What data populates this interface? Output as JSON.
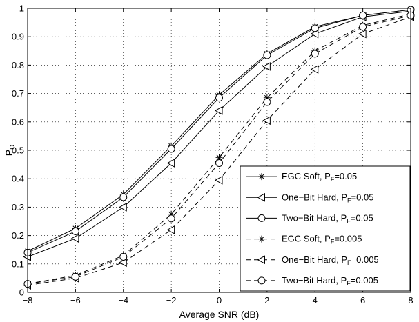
{
  "chart_data": {
    "type": "line",
    "xlabel": "Average SNR (dB)",
    "ylabel_main": "P",
    "ylabel_sub": "D",
    "xlim": [
      -8,
      8
    ],
    "ylim": [
      0,
      1
    ],
    "x_ticks": [
      -8,
      -6,
      -4,
      -2,
      0,
      2,
      4,
      6,
      8
    ],
    "x_tick_labels": [
      "−8",
      "−6",
      "−4",
      "−2",
      "0",
      "2",
      "4",
      "6",
      "8"
    ],
    "y_ticks": [
      0,
      0.1,
      0.2,
      0.3,
      0.4,
      0.5,
      0.6,
      0.7,
      0.8,
      0.9,
      1
    ],
    "y_tick_labels": [
      "0",
      "0.1",
      "0.2",
      "0.3",
      "0.4",
      "0.5",
      "0.6",
      "0.7",
      "0.8",
      "0.9",
      "1"
    ],
    "grid": true,
    "legend_position": "bottom-right",
    "x": [
      -8,
      -6,
      -4,
      -2,
      0,
      2,
      4,
      6,
      8
    ],
    "series": [
      {
        "name": "EGC Soft, P",
        "name_sub": "F",
        "name_suffix": "=0.05",
        "marker": "star",
        "dash": "solid",
        "values": [
          0.145,
          0.225,
          0.345,
          0.515,
          0.695,
          0.84,
          0.935,
          0.975,
          0.995
        ]
      },
      {
        "name": "One−Bit Hard, P",
        "name_sub": "F",
        "name_suffix": "=0.05",
        "marker": "triangle-left",
        "dash": "solid",
        "values": [
          0.125,
          0.19,
          0.3,
          0.455,
          0.64,
          0.795,
          0.91,
          0.97,
          0.99
        ]
      },
      {
        "name": "Two−Bit Hard, P",
        "name_sub": "F",
        "name_suffix": "=0.05",
        "marker": "circle",
        "dash": "solid",
        "values": [
          0.14,
          0.215,
          0.335,
          0.505,
          0.685,
          0.835,
          0.93,
          0.975,
          0.995
        ]
      },
      {
        "name": "EGC Soft, P",
        "name_sub": "F",
        "name_suffix": "=0.005",
        "marker": "star",
        "dash": "dashed",
        "values": [
          0.03,
          0.06,
          0.13,
          0.275,
          0.475,
          0.685,
          0.85,
          0.94,
          0.98
        ]
      },
      {
        "name": "One−Bit Hard, P",
        "name_sub": "F",
        "name_suffix": "=0.005",
        "marker": "triangle-left",
        "dash": "dashed",
        "values": [
          0.025,
          0.05,
          0.105,
          0.22,
          0.395,
          0.605,
          0.785,
          0.91,
          0.97
        ]
      },
      {
        "name": "Two−Bit Hard, P",
        "name_sub": "F",
        "name_suffix": "=0.005",
        "marker": "circle",
        "dash": "dashed",
        "values": [
          0.03,
          0.055,
          0.125,
          0.26,
          0.455,
          0.67,
          0.84,
          0.935,
          0.975
        ]
      }
    ]
  }
}
